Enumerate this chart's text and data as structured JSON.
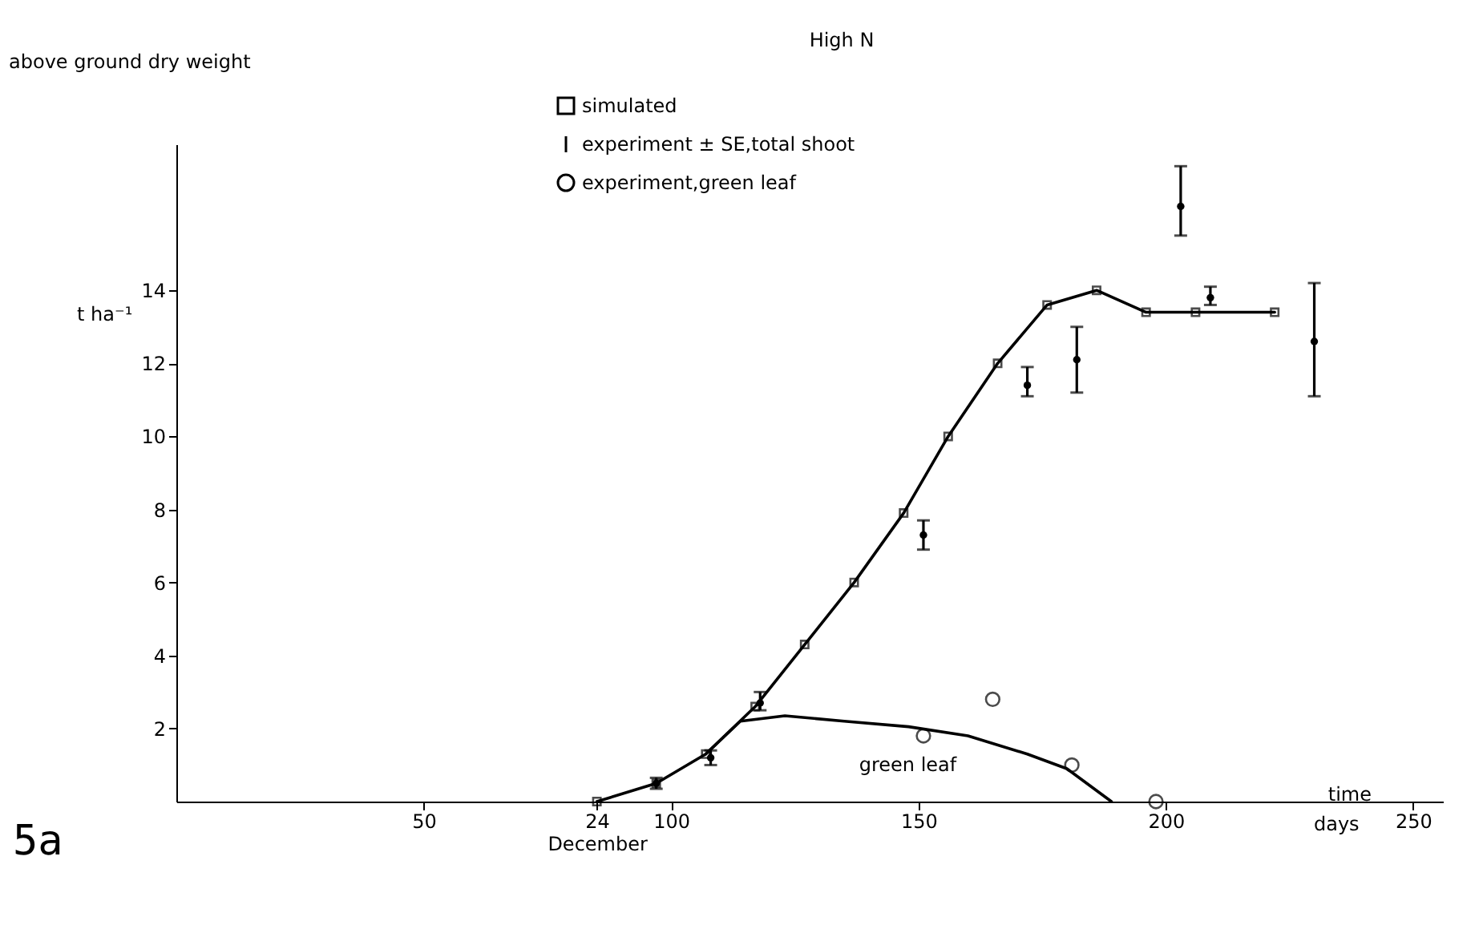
{
  "chart_data": {
    "type": "line",
    "title": "High N",
    "xlabel": "time",
    "ylabel": "above ground dry weight",
    "xlim": [
      0,
      256
    ],
    "xticks": [
      50,
      {
        "value": 85,
        "label": "24 December"
      },
      100,
      150,
      200,
      250
    ],
    "ylim": [
      0,
      18
    ],
    "yticks": [
      2,
      4,
      6,
      8,
      10,
      12,
      14
    ],
    "grid": false,
    "legend": "top",
    "annotations": [
      "t ha⁻¹",
      "days",
      "5a",
      "green leaf"
    ],
    "series": [
      {
        "name": "simulated",
        "color": "#000000",
        "marker": "square",
        "x": [
          85,
          97,
          107,
          117,
          127,
          137,
          147,
          156,
          166,
          176,
          186,
          196,
          206,
          222
        ],
        "values": [
          0,
          0.5,
          1.3,
          2.6,
          4.3,
          6.0,
          7.9,
          10.0,
          12.0,
          13.6,
          14.0,
          13.4,
          13.4,
          13.4
        ]
      },
      {
        "color": "#000000",
        "x": [
          107,
          114,
          123,
          135,
          148,
          160,
          172,
          180,
          189
        ],
        "values": [
          1.3,
          2.2,
          2.35,
          2.2,
          2.05,
          1.8,
          1.3,
          0.9,
          0
        ]
      },
      {
        "name": "experiment ± SE,total shoot",
        "type": "scatter",
        "color": "#000000",
        "x": [
          97,
          108,
          118,
          151,
          172,
          182,
          203,
          209,
          230
        ],
        "values": [
          0.5,
          1.2,
          2.7,
          7.3,
          11.4,
          12.1,
          16.3,
          13.8,
          12.6
        ],
        "errors": [
          [
            0.35,
            0.65
          ],
          [
            1.0,
            1.4
          ],
          [
            2.5,
            3.0
          ],
          [
            6.9,
            7.7
          ],
          [
            11.1,
            11.9
          ],
          [
            11.2,
            13.0
          ],
          [
            15.5,
            17.4
          ],
          [
            13.6,
            14.1
          ],
          [
            11.1,
            14.2
          ]
        ]
      },
      {
        "name": "experiment,green leaf",
        "type": "scatter",
        "color": "#000000",
        "marker": "circle",
        "x": [
          151,
          165,
          181,
          198
        ],
        "values": [
          1.8,
          2.8,
          1.0,
          0
        ]
      }
    ]
  }
}
